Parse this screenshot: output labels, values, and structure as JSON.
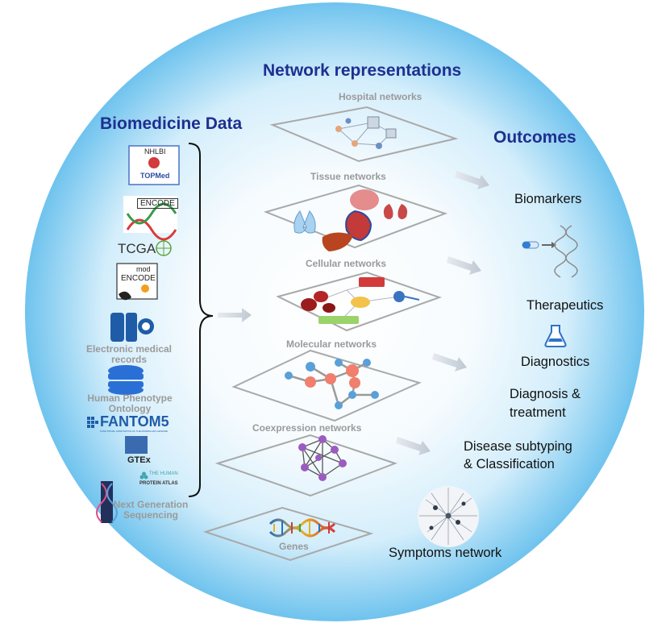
{
  "headings": {
    "network_representations": "Network representations",
    "biomedicine_data": "Biomedicine Data",
    "outcomes": "Outcomes"
  },
  "data_sources": {
    "nhlbi": "NHLBI",
    "topmed": "TOPMed",
    "encode": "ENCODE",
    "tcga": "TCGA",
    "mod": "mod",
    "modencode": "ENCODE",
    "ehr": "Electronic medical\nrecords",
    "hpo": "Human Phenotype\nOntology",
    "fantom5": "FANTOM5",
    "fantom5_sub": "FUNCTIONAL ANNOTATION OF THE MAMMALIAN GENOME",
    "gtex": "GTEx",
    "hpa_top": "THE HUMAN",
    "hpa_bottom": "PROTEIN ATLAS",
    "ngs": "Next Generation\nSequencing"
  },
  "layers": [
    "Hospital networks",
    "Tissue networks",
    "Cellular networks",
    "Molecular networks",
    "Coexpression networks",
    "Genes"
  ],
  "outcomes": {
    "biomarkers": "Biomarkers",
    "therapeutics": "Therapeutics",
    "diagnostics": "Diagnostics",
    "diagnosis_treatment": "Diagnosis &\ntreatment",
    "disease_subtyping": "Disease subtyping\n& Classification",
    "symptoms_network": "Symptoms network"
  },
  "colors": {
    "heading_blue": "#1f2f8f",
    "circle_center": "#ffffff",
    "circle_edge": "#6fc3ee",
    "layer_label_grey": "#9a9a9a",
    "arrow_grey": "#c5cdd8"
  }
}
